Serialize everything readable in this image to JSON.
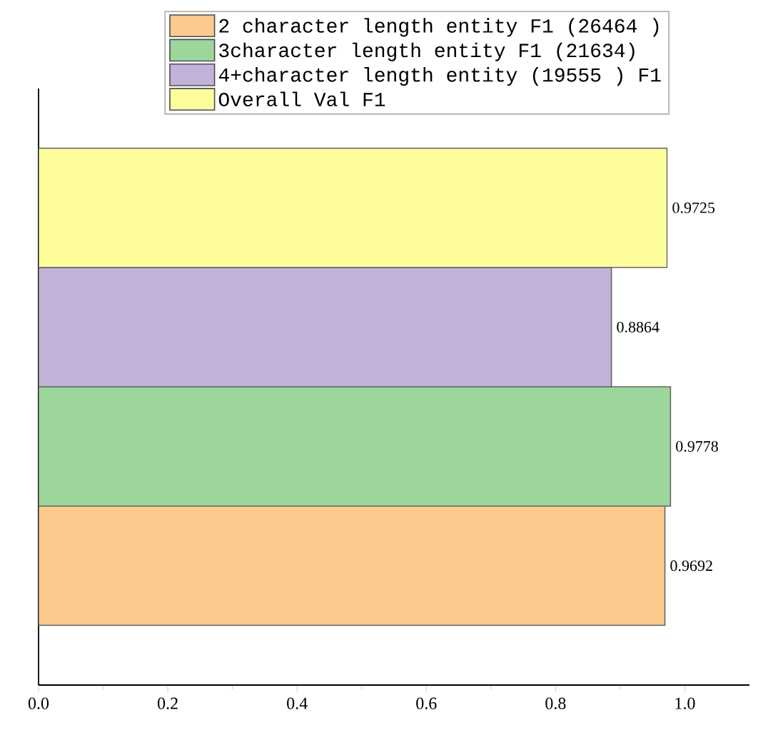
{
  "chart_data": {
    "type": "bar",
    "orientation": "horizontal",
    "categories": [
      null,
      null,
      null,
      null
    ],
    "series": [
      {
        "name": "2 character length entity F1 (26464 )",
        "color": "#fdca8e",
        "values": [
          null,
          null,
          null,
          0.9692
        ]
      },
      {
        "name": "3character length entity F1 (21634)",
        "color": "#9dd69a",
        "values": [
          null,
          null,
          0.9778,
          null
        ]
      },
      {
        "name": "4+character length entity (19555 ) F1",
        "color": "#c2b1d8",
        "values": [
          null,
          0.8864,
          null,
          null
        ]
      },
      {
        "name": "Overall Val F1",
        "color": "#fdfd9b",
        "values": [
          0.9725,
          null,
          null,
          null
        ]
      }
    ],
    "xlim": [
      0,
      1.1
    ],
    "xticks": [
      {
        "value": 0,
        "label": "0.0"
      },
      {
        "value": 0.1,
        "label": null
      },
      0.2,
      {
        "value": 0.3,
        "label": null
      },
      0.4,
      {
        "value": 0.5,
        "label": null
      },
      0.6,
      {
        "value": 0.7,
        "label": null
      },
      0.8,
      {
        "value": 0.9,
        "label": null
      },
      {
        "value": 1,
        "label": "1.0"
      }
    ],
    "tick_labels": "x",
    "data_labels": true,
    "legend": "top",
    "grid": false
  }
}
